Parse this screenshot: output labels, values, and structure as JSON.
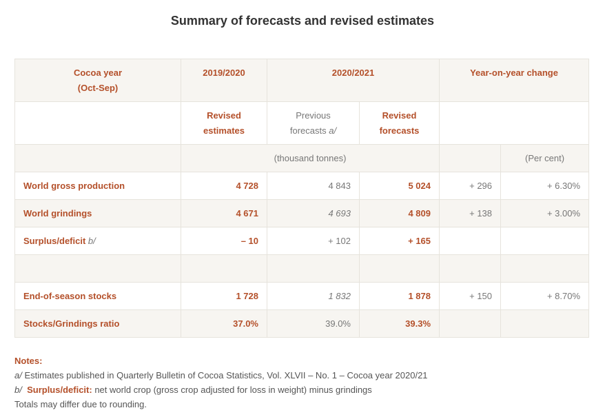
{
  "title": "Summary of forecasts and revised estimates",
  "table": {
    "header": {
      "cocoa_year": [
        "Cocoa year",
        "(Oct-Sep)"
      ],
      "y2019": "2019/2020",
      "y2020": "2020/2021",
      "yoy": "Year-on-year change",
      "revised_estimates": [
        "Revised",
        "estimates"
      ],
      "previous_forecasts": [
        "Previous",
        "forecasts"
      ],
      "previous_marker": "a/",
      "revised_forecasts": [
        "Revised",
        "forecasts"
      ],
      "units_tonnes": "(thousand tonnes)",
      "units_percent": "(Per cent)"
    },
    "rows": [
      {
        "label": "World gross production",
        "cells": [
          "4 728",
          "4 843",
          "5 024",
          "+ 296",
          "+ 6.30%"
        ]
      },
      {
        "label": "World grindings",
        "cells": [
          "4 671",
          "4 693",
          "4 809",
          "+ 138",
          "+ 3.00%"
        ]
      },
      {
        "label": "Surplus/deficit",
        "marker": "b/",
        "cells": [
          "– 10",
          "+ 102",
          "+ 165"
        ]
      },
      {
        "label": "End-of-season stocks",
        "cells": [
          "1 728",
          "1 832",
          "1 878",
          "+ 150",
          "+ 8.70%"
        ]
      },
      {
        "label": "Stocks/Grindings ratio",
        "cells": [
          "37.0%",
          "39.0%",
          "39.3%"
        ]
      }
    ]
  },
  "notes": {
    "heading": "Notes:",
    "a_marker": "a/",
    "a_text": "Estimates published in Quarterly Bulletin of Cocoa Statistics, Vol. XLVII – No. 1 – Cocoa year 2020/21",
    "b_marker": "b/",
    "b_term": "Surplus/deficit:",
    "b_text": "net world crop (gross crop adjusted for loss in weight) minus grindings",
    "totals": "Totals may differ due to rounding."
  }
}
